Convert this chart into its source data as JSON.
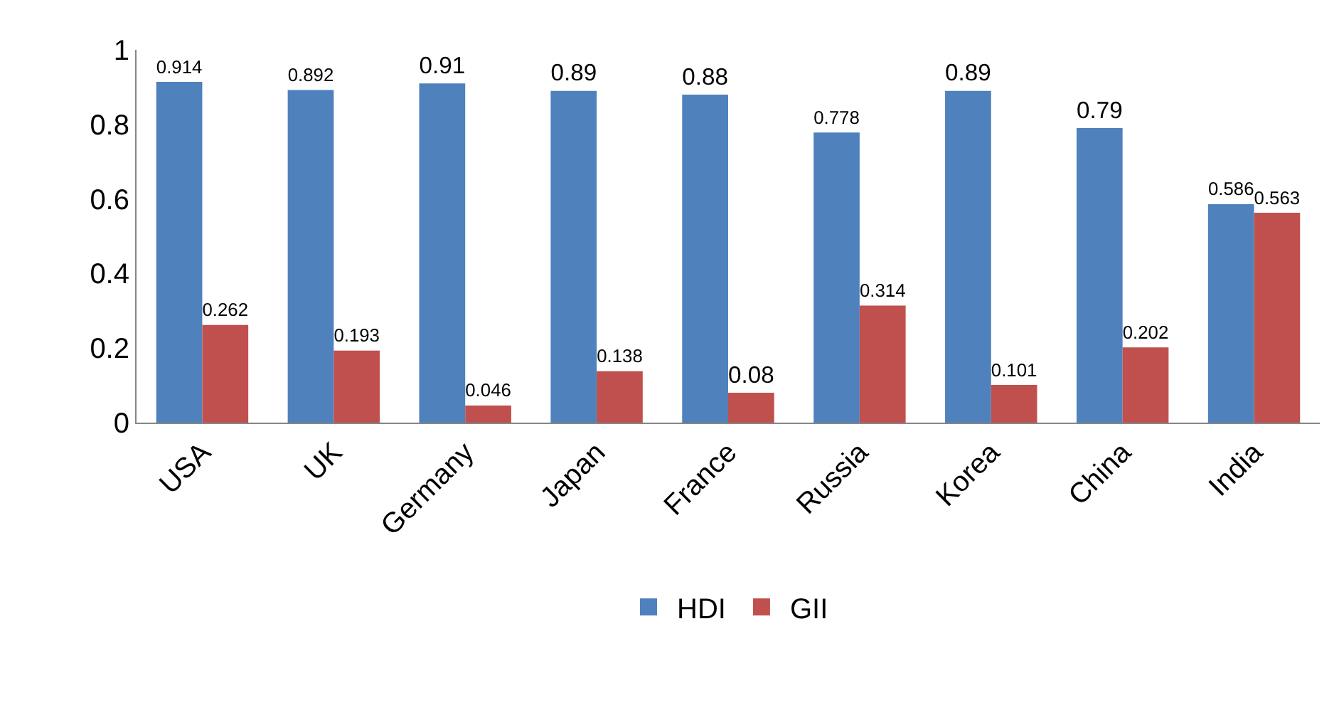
{
  "chart_data": {
    "type": "bar",
    "categories": [
      "USA",
      "UK",
      "Germany",
      "Japan",
      "France",
      "Russia",
      "Korea",
      "China",
      "India"
    ],
    "series": [
      {
        "name": "HDI",
        "color": "#4f81bd",
        "values": [
          0.914,
          0.892,
          0.91,
          0.89,
          0.88,
          0.778,
          0.89,
          0.79,
          0.586
        ]
      },
      {
        "name": "GII",
        "color": "#c0504d",
        "values": [
          0.262,
          0.193,
          0.046,
          0.138,
          0.08,
          0.314,
          0.101,
          0.202,
          0.563
        ]
      }
    ],
    "ylim": [
      0,
      1
    ],
    "yticks": [
      0,
      0.2,
      0.4,
      0.6,
      0.8,
      1
    ],
    "grid": false,
    "legend": "bottom",
    "data_labels": true
  }
}
